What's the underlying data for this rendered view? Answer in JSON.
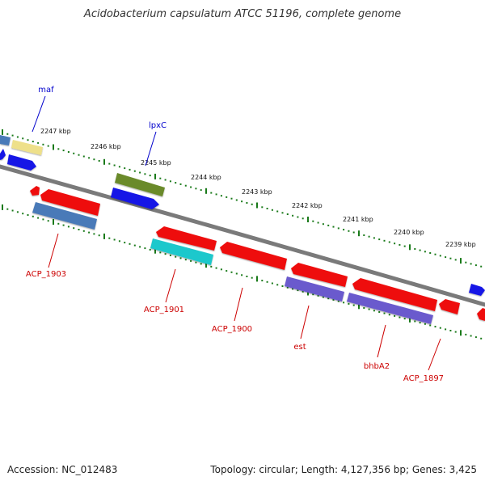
{
  "header": {
    "title": "Acidobacterium capsulatum ATCC 51196, complete genome"
  },
  "footer": {
    "accession": "Accession: NC_012483",
    "summary": "Topology: circular; Length: 4,127,356 bp; Genes: 3,425"
  },
  "colors": {
    "backbone": "#7a7a7a",
    "tick": "#1a7a1a",
    "label_forward": "#0000cc",
    "label_reverse": "#cc0000",
    "gene_red": "#ee1111",
    "gene_blue": "#1414e6",
    "gene_steelblue": "#4a7ab8",
    "gene_khaki": "#eee08a",
    "gene_olive": "#6a8a2a",
    "gene_cyan": "#1ec8cc",
    "gene_slateblue": "#6a5acd"
  },
  "kbp_labels": [
    "2247 kbp",
    "2246 kbp",
    "2245 kbp",
    "2244 kbp",
    "2243 kbp",
    "2242 kbp",
    "2241 kbp",
    "2240 kbp",
    "2239 kbp"
  ],
  "forward_gene_labels": [
    "maf",
    "lpxC"
  ],
  "reverse_gene_labels": [
    "ACP_1903",
    "ACP_1901",
    "ACP_1900",
    "est",
    "bhbA2",
    "ACP_1897"
  ]
}
